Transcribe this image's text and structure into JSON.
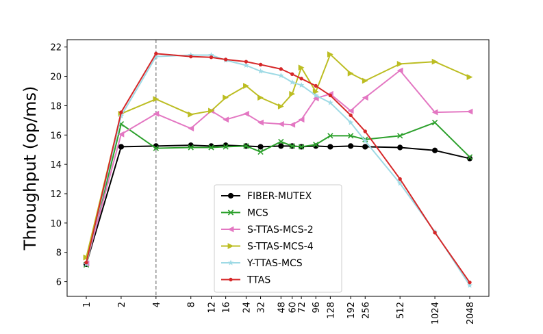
{
  "chart_data": {
    "type": "line",
    "title": "",
    "xlabel": "",
    "ylabel": "Throughput (op/ms)",
    "x_scale": "log2",
    "x_ticks": [
      1,
      2,
      4,
      8,
      12,
      16,
      24,
      32,
      48,
      60,
      72,
      96,
      128,
      192,
      256,
      512,
      1024,
      2048
    ],
    "y_ticks": [
      6,
      8,
      10,
      12,
      14,
      16,
      18,
      20,
      22
    ],
    "ylim": [
      5,
      22.5
    ],
    "grid": false,
    "legend_position": "lower-center",
    "vertical_reference_line": {
      "x": 4,
      "style": "dashed",
      "color": "#808080"
    },
    "series": [
      {
        "name": "FIBER-MUTEX",
        "color": "#000000",
        "marker": "circle",
        "x": [
          1,
          2,
          4,
          8,
          12,
          16,
          24,
          32,
          48,
          60,
          72,
          96,
          128,
          192,
          256,
          512,
          1024,
          2048
        ],
        "y": [
          7.2,
          15.2,
          15.25,
          15.3,
          15.25,
          15.3,
          15.25,
          15.2,
          15.25,
          15.25,
          15.2,
          15.25,
          15.2,
          15.25,
          15.2,
          15.15,
          14.95,
          14.4
        ]
      },
      {
        "name": "MCS",
        "color": "#2ca02c",
        "marker": "x",
        "x": [
          1,
          2,
          4,
          8,
          12,
          16,
          24,
          32,
          48,
          60,
          72,
          96,
          128,
          192,
          256,
          512,
          1024,
          2048
        ],
        "y": [
          7.15,
          16.75,
          15.1,
          15.15,
          15.15,
          15.2,
          15.25,
          14.85,
          15.55,
          15.25,
          15.2,
          15.35,
          15.95,
          15.95,
          15.7,
          15.95,
          16.85,
          14.5
        ]
      },
      {
        "name": "S-TTAS-MCS-2",
        "color": "#e377c2",
        "marker": "triangle-left",
        "x": [
          1,
          2,
          4,
          8,
          12,
          16,
          24,
          32,
          48,
          60,
          72,
          96,
          128,
          192,
          256,
          512,
          1024,
          2048
        ],
        "y": [
          7.25,
          16.05,
          17.45,
          16.45,
          17.65,
          17.05,
          17.45,
          16.85,
          16.75,
          16.7,
          17.05,
          18.5,
          18.8,
          17.65,
          18.55,
          20.4,
          17.55,
          17.6
        ]
      },
      {
        "name": "S-TTAS-MCS-4",
        "color": "#bcbd22",
        "marker": "triangle-right",
        "x": [
          1,
          2,
          4,
          8,
          12,
          16,
          24,
          32,
          48,
          60,
          72,
          96,
          128,
          192,
          256,
          512,
          1024,
          2048
        ],
        "y": [
          7.65,
          17.45,
          18.45,
          17.4,
          17.65,
          18.55,
          19.35,
          18.55,
          17.95,
          18.8,
          20.6,
          18.95,
          21.5,
          20.2,
          19.7,
          20.85,
          21.0,
          19.95
        ]
      },
      {
        "name": "Y-TTAS-MCS",
        "color": "#9edae5",
        "marker": "star",
        "x": [
          1,
          2,
          4,
          8,
          12,
          16,
          24,
          32,
          48,
          60,
          72,
          96,
          128,
          192,
          256,
          512,
          1024,
          2048
        ],
        "y": [
          7.2,
          17.3,
          21.35,
          21.45,
          21.45,
          21.1,
          20.75,
          20.35,
          20.05,
          19.6,
          19.4,
          18.7,
          18.2,
          16.85,
          15.6,
          12.7,
          9.4,
          5.75
        ]
      },
      {
        "name": "TTAS",
        "color": "#d62728",
        "marker": "dot",
        "x": [
          1,
          2,
          4,
          8,
          12,
          16,
          24,
          32,
          48,
          60,
          72,
          96,
          128,
          192,
          256,
          512,
          1024,
          2048
        ],
        "y": [
          7.3,
          17.55,
          21.55,
          21.35,
          21.3,
          21.15,
          21.0,
          20.8,
          20.5,
          20.15,
          19.85,
          19.35,
          18.7,
          17.35,
          16.25,
          13.0,
          9.35,
          5.95
        ]
      }
    ]
  }
}
